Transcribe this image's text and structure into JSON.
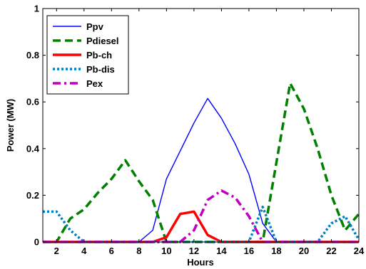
{
  "chart_data": {
    "type": "line",
    "xlabel": "Hours",
    "ylabel": "Power (MW)",
    "xlim": [
      1,
      24
    ],
    "ylim": [
      0,
      1
    ],
    "xticks": [
      2,
      4,
      6,
      8,
      10,
      12,
      14,
      16,
      18,
      20,
      22,
      24
    ],
    "yticks": [
      0,
      0.2,
      0.4,
      0.6,
      0.8,
      1
    ],
    "ytick_labels": [
      "0",
      "0.2",
      "0.4",
      "0.6",
      "0.8",
      "1"
    ],
    "grid": false,
    "legend_position": "top-left",
    "series": [
      {
        "name": "Ppv",
        "color": "#0000ff",
        "style": "solid",
        "x": [
          1,
          2,
          3,
          4,
          5,
          6,
          7,
          8,
          9,
          10,
          11,
          12,
          13,
          14,
          15,
          16,
          17,
          18,
          19,
          20,
          21,
          22,
          23,
          24
        ],
        "y": [
          0,
          0,
          0,
          0,
          0,
          0,
          0,
          0,
          0.05,
          0.27,
          0.39,
          0.51,
          0.615,
          0.53,
          0.42,
          0.29,
          0.08,
          0,
          0,
          0,
          0,
          0,
          0,
          0
        ]
      },
      {
        "name": "Pdiesel",
        "color": "#008000",
        "style": "dashed",
        "x": [
          1,
          2,
          3,
          4,
          5,
          6,
          7,
          8,
          9,
          10,
          11,
          12,
          13,
          14,
          15,
          16,
          17,
          18,
          19,
          20,
          21,
          22,
          23,
          24
        ],
        "y": [
          0,
          0,
          0.1,
          0.14,
          0.21,
          0.27,
          0.35,
          0.26,
          0.18,
          0,
          0,
          0,
          0,
          0,
          0,
          0,
          0,
          0.34,
          0.68,
          0.57,
          0.4,
          0.2,
          0.05,
          0.12
        ]
      },
      {
        "name": "Pb-ch",
        "color": "#ff0000",
        "style": "solid",
        "x": [
          1,
          2,
          3,
          4,
          5,
          6,
          7,
          8,
          9,
          10,
          11,
          12,
          13,
          14,
          15,
          16,
          17,
          18,
          19,
          20,
          21,
          22,
          23,
          24
        ],
        "y": [
          0,
          0,
          0,
          0,
          0,
          0,
          0,
          0,
          0,
          0.02,
          0.12,
          0.13,
          0.03,
          0,
          0,
          0,
          0,
          0,
          0,
          0,
          0,
          0,
          0,
          0
        ]
      },
      {
        "name": "Pb-dis",
        "color": "#0080c0",
        "style": "dotted",
        "x": [
          1,
          2,
          3,
          4,
          5,
          6,
          7,
          8,
          9,
          10,
          11,
          12,
          13,
          14,
          15,
          16,
          17,
          18,
          19,
          20,
          21,
          22,
          23,
          24
        ],
        "y": [
          0.13,
          0.13,
          0.05,
          0,
          0,
          0,
          0,
          0,
          0,
          0,
          0,
          0,
          0,
          0,
          0,
          0,
          0.15,
          0,
          0,
          0,
          0,
          0.08,
          0.11,
          0.01
        ]
      },
      {
        "name": "Pex",
        "color": "#bf00bf",
        "style": "dashdot",
        "x": [
          1,
          2,
          3,
          4,
          5,
          6,
          7,
          8,
          9,
          10,
          11,
          12,
          13,
          14,
          15,
          16,
          17,
          18,
          19,
          20,
          21,
          22,
          23,
          24
        ],
        "y": [
          0,
          0,
          0,
          0,
          0,
          0,
          0,
          0,
          0,
          0,
          0,
          0.05,
          0.18,
          0.22,
          0.19,
          0.11,
          0,
          0,
          0,
          0,
          0,
          0,
          0,
          0
        ]
      }
    ]
  }
}
